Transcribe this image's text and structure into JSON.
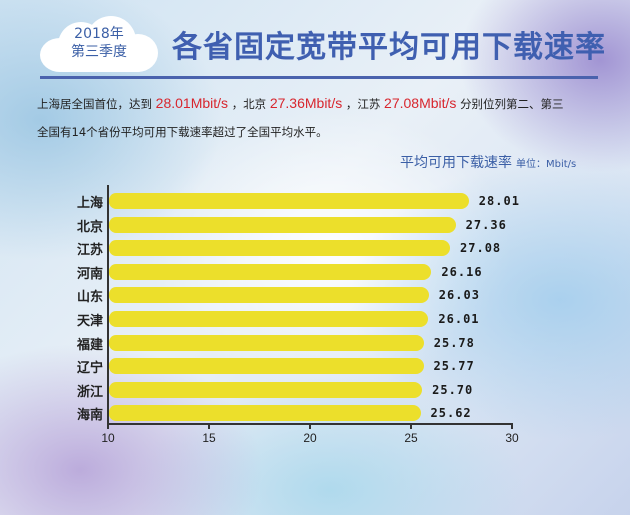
{
  "header": {
    "badge_line1": "2018年",
    "badge_line2": "第三季度",
    "title": "各省固定宽带平均可用下载速率"
  },
  "description": {
    "line1_part1": "上海居全国首位，达到",
    "line1_value1": "28.01Mbit/s",
    "line1_part2": "，北京",
    "line1_value2": "27.36Mbit/s",
    "line1_part3": "，江苏",
    "line1_value3": "27.08Mbit/s",
    "line1_part4": "分别位列第二、第三",
    "line2": "全国有14个省份平均可用下载速率超过了全国平均水平。"
  },
  "colors": {
    "bar": "#ecdf2b",
    "title": "#3f5fb0",
    "highlight": "#d8262e"
  },
  "chart_data": {
    "type": "bar",
    "orientation": "horizontal",
    "title": "平均可用下载速率",
    "unit_label": "单位：Mbit/s",
    "categories": [
      "上海",
      "北京",
      "江苏",
      "河南",
      "山东",
      "天津",
      "福建",
      "辽宁",
      "浙江",
      "海南"
    ],
    "values": [
      28.01,
      27.36,
      27.08,
      26.16,
      26.03,
      26.01,
      25.78,
      25.77,
      25.7,
      25.62
    ],
    "value_labels": [
      "28.01",
      "27.36",
      "27.08",
      "26.16",
      "26.03",
      "26.01",
      "25.78",
      "25.77",
      "25.70",
      "25.62"
    ],
    "xlabel": "",
    "ylabel": "",
    "xlim": [
      10,
      30
    ],
    "xticks": [
      "10",
      "15",
      "20",
      "25",
      "30"
    ],
    "grid": false,
    "legend": "none"
  }
}
